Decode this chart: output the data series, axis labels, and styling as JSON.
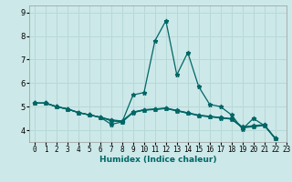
{
  "xlabel": "Humidex (Indice chaleur)",
  "ylabel": "",
  "bg_color": "#cce8e8",
  "grid_color": "#b8d8d8",
  "line_color": "#006666",
  "xlim": [
    -0.5,
    23
  ],
  "ylim": [
    3.5,
    9.3
  ],
  "yticks": [
    4,
    5,
    6,
    7,
    8,
    9
  ],
  "xtick_labels": [
    "0",
    "1",
    "2",
    "3",
    "4",
    "5",
    "6",
    "7",
    "8",
    "9",
    "10",
    "11",
    "12",
    "13",
    "14",
    "15",
    "16",
    "17",
    "18",
    "19",
    "20",
    "21",
    "22",
    "23"
  ],
  "series": [
    [
      5.15,
      5.15,
      5.0,
      4.9,
      4.75,
      4.65,
      4.55,
      4.25,
      4.35,
      5.5,
      5.6,
      7.8,
      8.65,
      6.35,
      7.3,
      5.85,
      5.1,
      5.0,
      4.65,
      4.05,
      4.5,
      4.2,
      3.65
    ],
    [
      5.15,
      5.15,
      5.0,
      4.9,
      4.75,
      4.65,
      4.55,
      4.4,
      4.35,
      4.75,
      4.85,
      4.88,
      4.92,
      4.82,
      4.72,
      4.62,
      4.57,
      4.52,
      4.47,
      4.1,
      4.15,
      4.2,
      3.65
    ],
    [
      5.15,
      5.15,
      5.0,
      4.9,
      4.75,
      4.65,
      4.55,
      4.42,
      4.37,
      4.76,
      4.86,
      4.89,
      4.93,
      4.83,
      4.73,
      4.63,
      4.58,
      4.53,
      4.48,
      4.12,
      4.17,
      4.22,
      3.65
    ],
    [
      5.15,
      5.15,
      5.0,
      4.9,
      4.75,
      4.65,
      4.55,
      4.44,
      4.39,
      4.77,
      4.87,
      4.9,
      4.94,
      4.84,
      4.74,
      4.64,
      4.59,
      4.54,
      4.49,
      4.14,
      4.19,
      4.24,
      3.65
    ]
  ],
  "marker": "*",
  "markersize": 3.5,
  "linewidth": 0.9,
  "xlabel_fontsize": 6.5,
  "xlabel_color": "#006666",
  "tick_fontsize": 5.5,
  "ytick_fontsize": 6.0
}
